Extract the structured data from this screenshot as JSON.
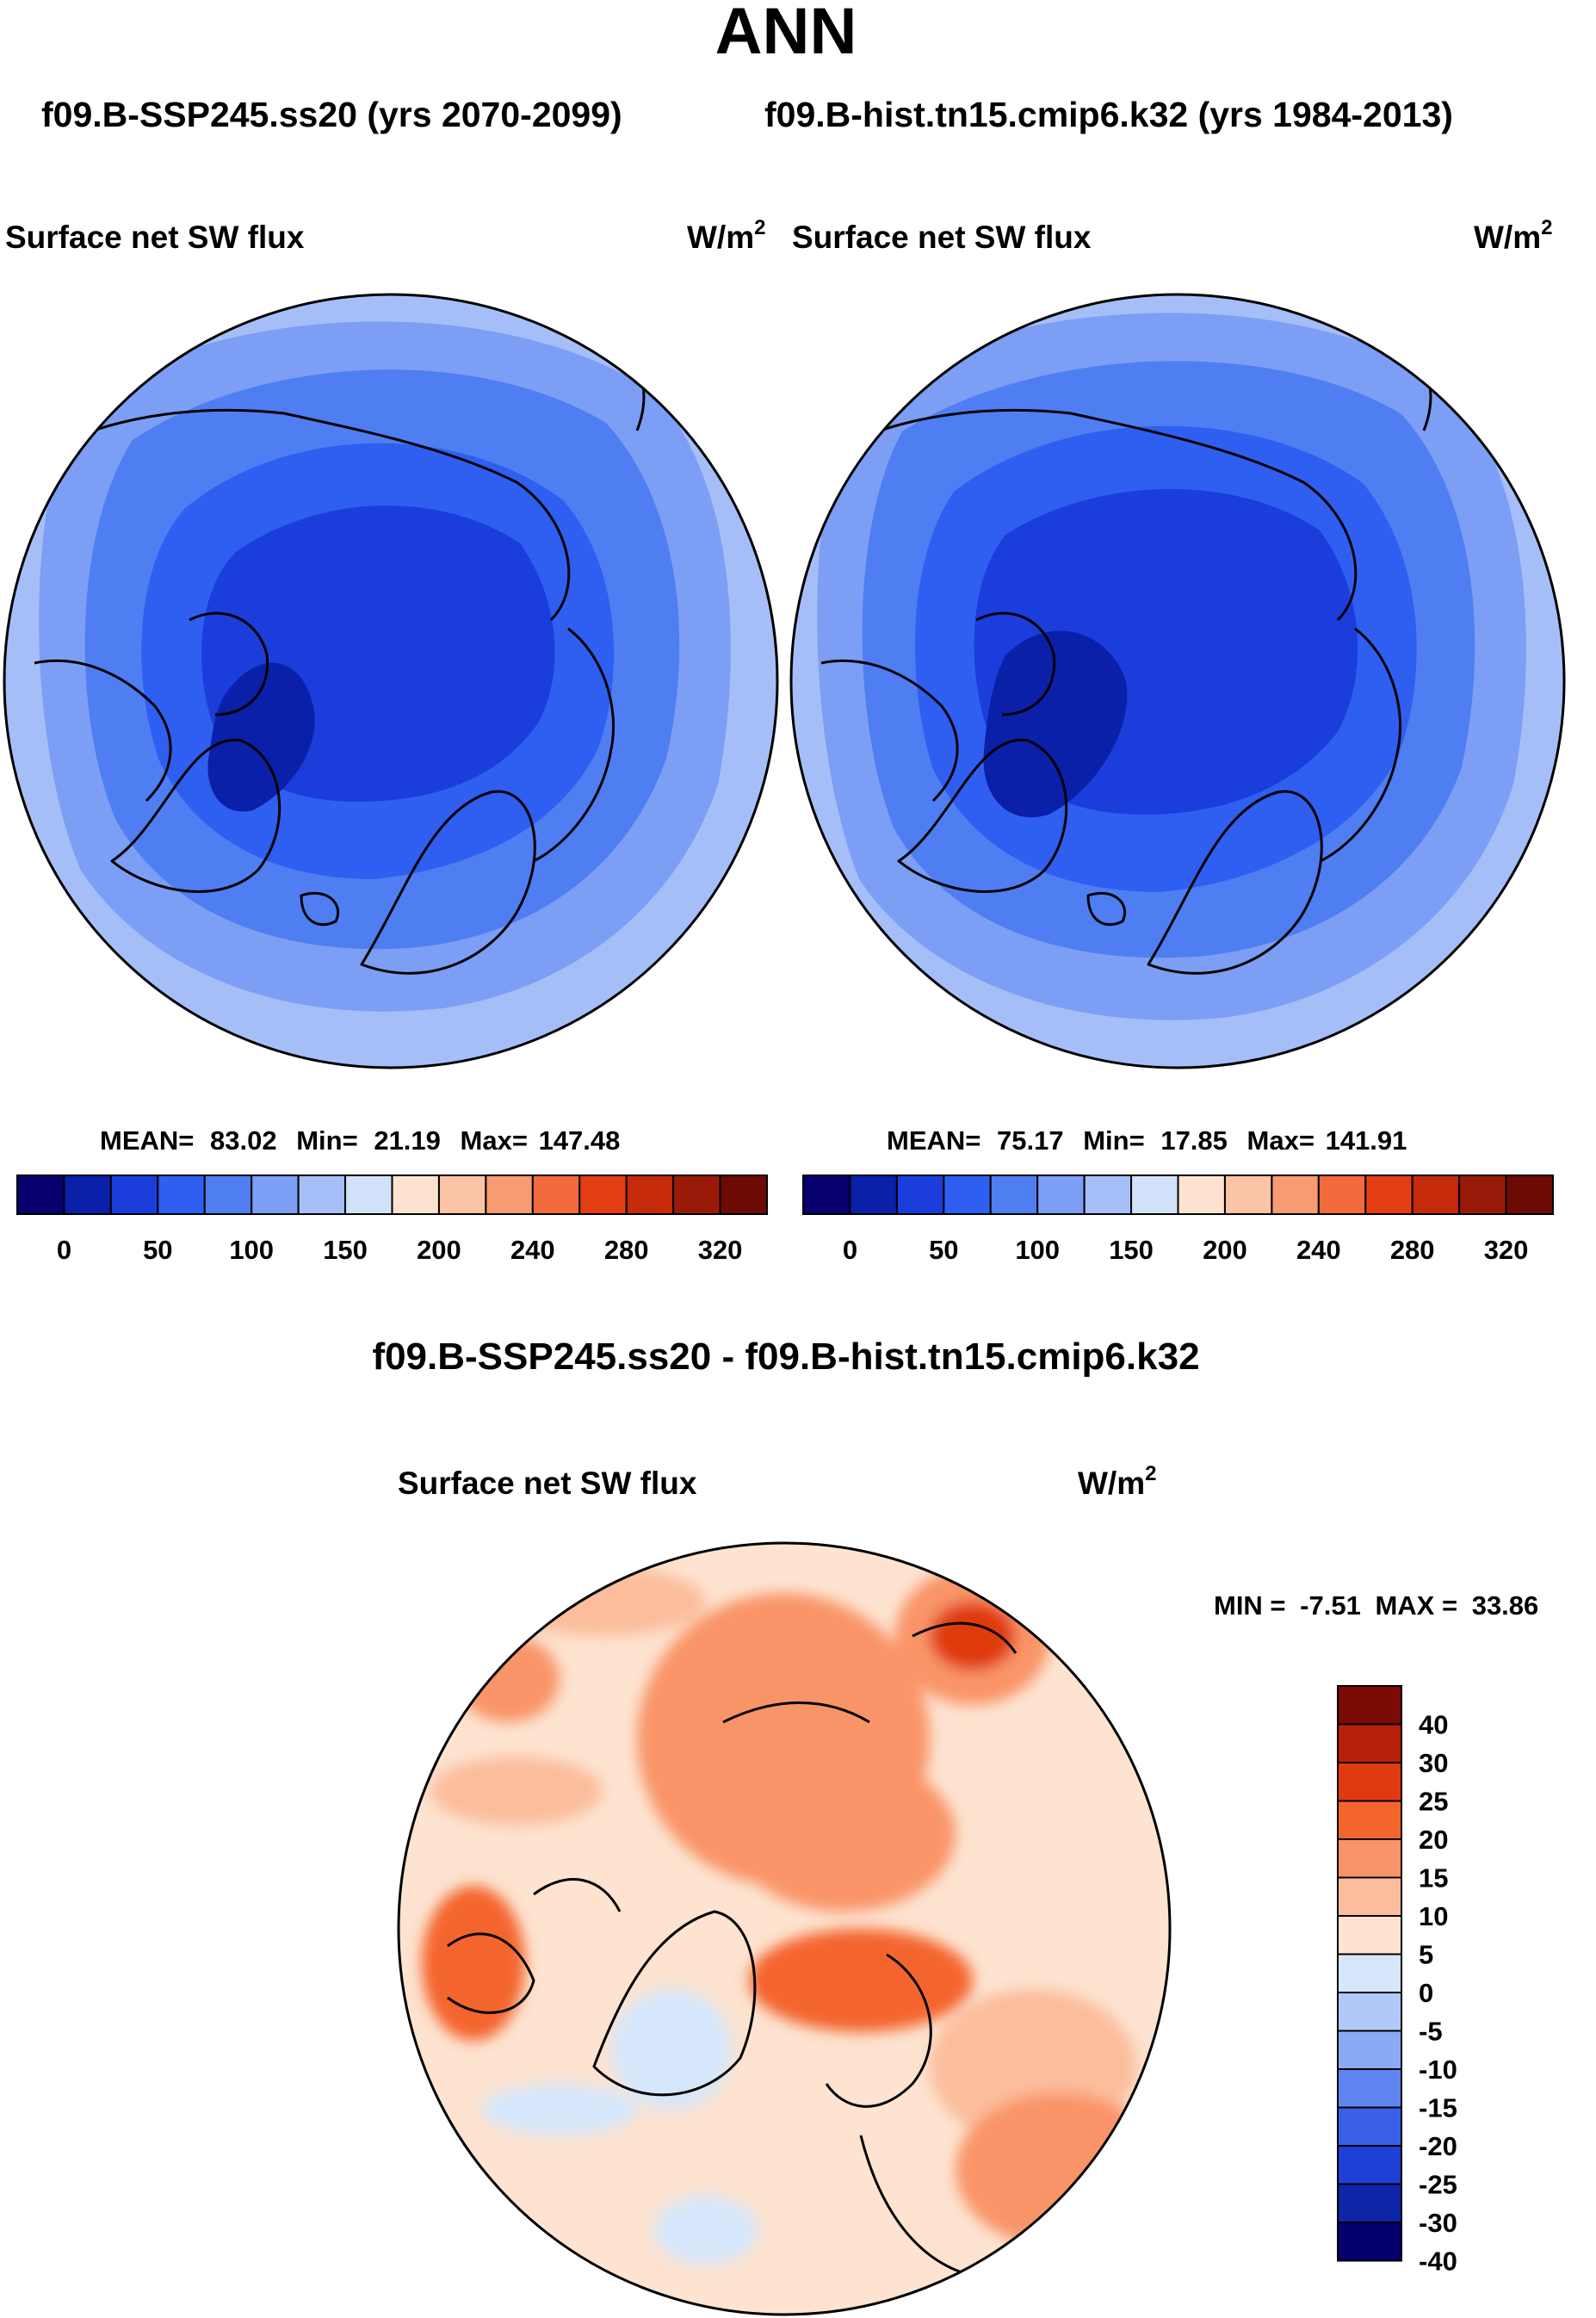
{
  "figure": {
    "title": "ANN",
    "subtitle_left": "f09.B-SSP245.ss20 (yrs 2070-2099)",
    "subtitle_right": "f09.B-hist.tn15.cmip6.k32 (yrs 1984-2013)"
  },
  "panels": [
    {
      "variable": "Surface net SW flux",
      "units": "W/m",
      "units_exp": "2",
      "stats": {
        "mean_label": "MEAN=",
        "mean": "83.02",
        "min_label": "Min=",
        "min": "21.19",
        "max_label": "Max=",
        "max": "147.48"
      }
    },
    {
      "variable": "Surface net SW flux",
      "units": "W/m",
      "units_exp": "2",
      "stats": {
        "mean_label": "MEAN=",
        "mean": "75.17",
        "min_label": "Min=",
        "min": "17.85",
        "max_label": "Max=",
        "max": "141.91"
      }
    }
  ],
  "abs_colorbar": {
    "labels": [
      "0",
      "50",
      "100",
      "150",
      "200",
      "240",
      "280",
      "320"
    ],
    "colors": [
      "#08006e",
      "#0a20a8",
      "#1a3ddb",
      "#2f5ff0",
      "#4f7ef2",
      "#7c9ef5",
      "#a6bef8",
      "#d3e2fb",
      "#fde3cf",
      "#fbc4a5",
      "#f79b72",
      "#f26a3c",
      "#e33f12",
      "#c52a0a",
      "#991a08",
      "#6e0a04"
    ]
  },
  "diff": {
    "title": "f09.B-SSP245.ss20 - f09.B-hist.tn15.cmip6.k32",
    "variable": "Surface net SW flux",
    "units": "W/m",
    "units_exp": "2",
    "min_label": "MIN =",
    "min": "-7.51",
    "max_label": "MAX =",
    "max": "33.86"
  },
  "diff_colorbar": {
    "labels": [
      "40",
      "30",
      "25",
      "20",
      "15",
      "10",
      "5",
      "0",
      "-5",
      "-10",
      "-15",
      "-20",
      "-25",
      "-30",
      "-40"
    ],
    "colors": [
      "#7d0b05",
      "#b82109",
      "#e03a10",
      "#f4652e",
      "#f99468",
      "#fbbd9c",
      "#fde3d0",
      "#d6e7fb",
      "#b1c9f8",
      "#8aaaf5",
      "#5f85f0",
      "#3a60e8",
      "#1e3fd6",
      "#0f25a8",
      "#06006e"
    ]
  },
  "chart_data": [
    {
      "type": "heatmap",
      "title": "Surface net SW flux",
      "subtitle": "f09.B-SSP245.ss20 (yrs 2070-2099)",
      "units": "W/m2",
      "projection": "north polar stereographic",
      "mean": 83.02,
      "min": 21.19,
      "max": 147.48,
      "levels": [
        0,
        25,
        50,
        75,
        100,
        125,
        150,
        175,
        200,
        220,
        240,
        260,
        280,
        300,
        320
      ]
    },
    {
      "type": "heatmap",
      "title": "Surface net SW flux",
      "subtitle": "f09.B-hist.tn15.cmip6.k32 (yrs 1984-2013)",
      "units": "W/m2",
      "projection": "north polar stereographic",
      "mean": 75.17,
      "min": 17.85,
      "max": 141.91,
      "levels": [
        0,
        25,
        50,
        75,
        100,
        125,
        150,
        175,
        200,
        220,
        240,
        260,
        280,
        300,
        320
      ]
    },
    {
      "type": "heatmap",
      "title": "Surface net SW flux",
      "subtitle": "f09.B-SSP245.ss20 - f09.B-hist.tn15.cmip6.k32",
      "units": "W/m2",
      "projection": "north polar stereographic",
      "min": -7.51,
      "max": 33.86,
      "levels": [
        -40,
        -30,
        -25,
        -20,
        -15,
        -10,
        -5,
        0,
        5,
        10,
        15,
        20,
        25,
        30,
        40
      ]
    }
  ]
}
